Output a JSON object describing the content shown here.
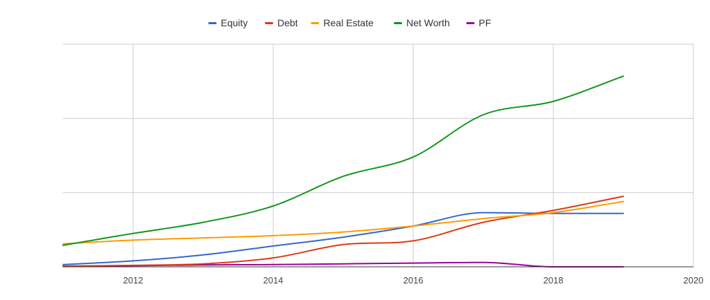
{
  "chart_data": {
    "type": "line",
    "title": "",
    "xlabel": "",
    "ylabel": "",
    "xlim": [
      2011,
      2020
    ],
    "ylim": [
      0,
      300
    ],
    "x_ticks": [
      2012,
      2014,
      2016,
      2018,
      2020
    ],
    "x_tick_labels": [
      "2012",
      "2014",
      "2016",
      "2018",
      "2020"
    ],
    "y_gridlines": [
      0,
      100,
      200,
      300
    ],
    "y_tick_labels_visible": false,
    "grid": true,
    "legend_position": "top-center",
    "series": [
      {
        "name": "Equity",
        "color": "#3366cc",
        "x": [
          2011,
          2012,
          2013,
          2014,
          2015,
          2016,
          2017,
          2018,
          2019
        ],
        "y": [
          3,
          8,
          16,
          28,
          40,
          55,
          73,
          72,
          72
        ]
      },
      {
        "name": "Debt",
        "color": "#dc3912",
        "x": [
          2011,
          2012,
          2013,
          2014,
          2015,
          2016,
          2017,
          2018,
          2019
        ],
        "y": [
          1,
          2,
          4,
          12,
          30,
          35,
          60,
          76,
          95
        ]
      },
      {
        "name": "Real Estate",
        "color": "#ff9900",
        "x": [
          2011,
          2012,
          2013,
          2014,
          2015,
          2016,
          2017,
          2018,
          2019
        ],
        "y": [
          31,
          36,
          39,
          42,
          47,
          55,
          65,
          73,
          88
        ]
      },
      {
        "name": "Net Worth",
        "color": "#109618",
        "x": [
          2011,
          2012,
          2013,
          2014,
          2015,
          2016,
          2017,
          2018,
          2019
        ],
        "y": [
          29,
          45,
          60,
          82,
          122,
          148,
          205,
          223,
          257
        ]
      },
      {
        "name": "PF",
        "color": "#990099",
        "x": [
          2011,
          2012,
          2013,
          2014,
          2015,
          2016,
          2017,
          2018,
          2019
        ],
        "y": [
          0.5,
          1.5,
          2.5,
          3,
          4,
          5,
          6,
          0,
          0
        ]
      }
    ]
  }
}
